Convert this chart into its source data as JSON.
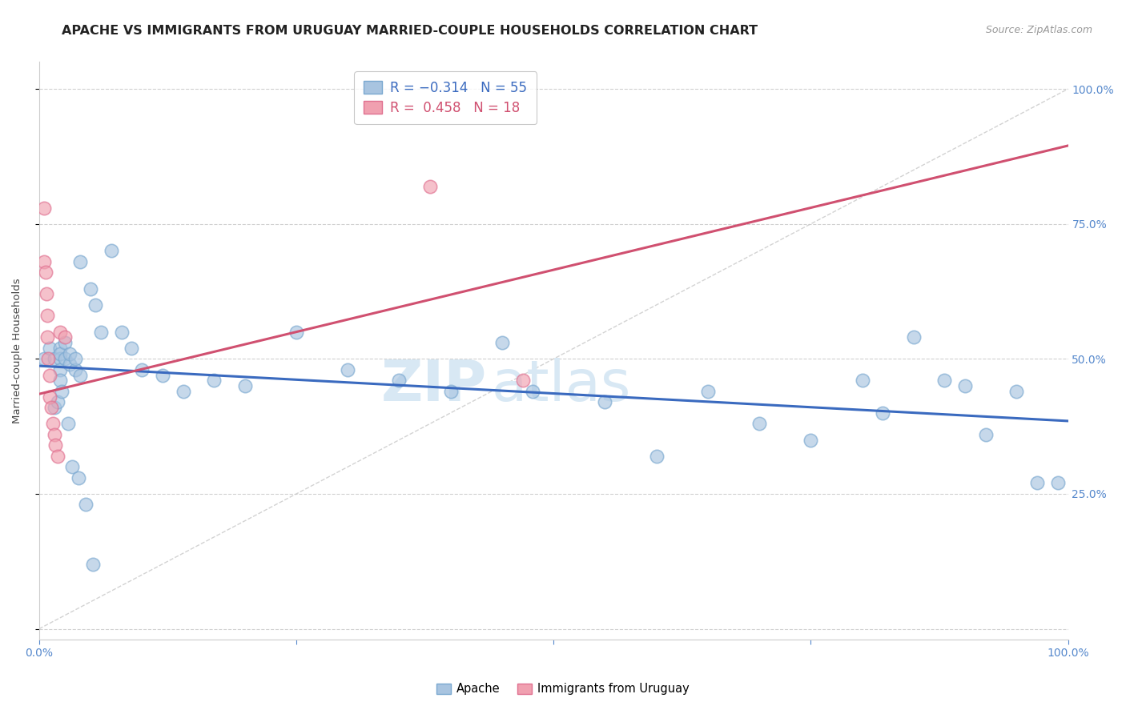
{
  "title": "APACHE VS IMMIGRANTS FROM URUGUAY MARRIED-COUPLE HOUSEHOLDS CORRELATION CHART",
  "source": "Source: ZipAtlas.com",
  "ylabel": "Married-couple Households",
  "xlim": [
    0.0,
    1.0
  ],
  "ylim": [
    -0.02,
    1.05
  ],
  "xticks": [
    0.0,
    0.25,
    0.5,
    0.75,
    1.0
  ],
  "yticks": [
    0.0,
    0.25,
    0.5,
    0.75,
    1.0
  ],
  "xticklabels": [
    "0.0%",
    "",
    "",
    "",
    "100.0%"
  ],
  "yticklabels_right": [
    "",
    "25.0%",
    "50.0%",
    "75.0%",
    "100.0%"
  ],
  "watermark_zip": "ZIP",
  "watermark_atlas": "atlas",
  "apache_x": [
    0.005,
    0.01,
    0.015,
    0.02,
    0.02,
    0.02,
    0.02,
    0.02,
    0.025,
    0.025,
    0.03,
    0.03,
    0.035,
    0.035,
    0.04,
    0.04,
    0.05,
    0.055,
    0.06,
    0.07,
    0.08,
    0.09,
    0.1,
    0.12,
    0.14,
    0.17,
    0.2,
    0.25,
    0.3,
    0.35,
    0.4,
    0.45,
    0.48,
    0.55,
    0.6,
    0.65,
    0.7,
    0.75,
    0.8,
    0.82,
    0.85,
    0.88,
    0.9,
    0.92,
    0.95,
    0.97,
    0.99,
    0.015,
    0.018,
    0.022,
    0.028,
    0.032,
    0.038,
    0.045,
    0.052
  ],
  "apache_y": [
    0.5,
    0.52,
    0.5,
    0.52,
    0.5,
    0.48,
    0.46,
    0.51,
    0.53,
    0.5,
    0.49,
    0.51,
    0.48,
    0.5,
    0.47,
    0.68,
    0.63,
    0.6,
    0.55,
    0.7,
    0.55,
    0.52,
    0.48,
    0.47,
    0.44,
    0.46,
    0.45,
    0.55,
    0.48,
    0.46,
    0.44,
    0.53,
    0.44,
    0.42,
    0.32,
    0.44,
    0.38,
    0.35,
    0.46,
    0.4,
    0.54,
    0.46,
    0.45,
    0.36,
    0.44,
    0.27,
    0.27,
    0.41,
    0.42,
    0.44,
    0.38,
    0.3,
    0.28,
    0.23,
    0.12
  ],
  "uruguay_x": [
    0.005,
    0.005,
    0.006,
    0.007,
    0.008,
    0.008,
    0.009,
    0.01,
    0.01,
    0.012,
    0.013,
    0.015,
    0.016,
    0.018,
    0.02,
    0.025,
    0.38,
    0.47
  ],
  "uruguay_y": [
    0.78,
    0.68,
    0.66,
    0.62,
    0.58,
    0.54,
    0.5,
    0.47,
    0.43,
    0.41,
    0.38,
    0.36,
    0.34,
    0.32,
    0.55,
    0.54,
    0.82,
    0.46
  ],
  "blue_line_x": [
    0.0,
    1.0
  ],
  "blue_line_y": [
    0.487,
    0.385
  ],
  "pink_line_x": [
    0.0,
    1.0
  ],
  "pink_line_y": [
    0.435,
    0.895
  ],
  "diag_line_x": [
    0.0,
    1.0
  ],
  "diag_line_y": [
    0.0,
    1.0
  ],
  "dot_color_blue": "#a8c4e0",
  "dot_color_pink": "#f0a0b0",
  "dot_edge_blue": "#7aa8d0",
  "dot_edge_pink": "#e07090",
  "line_color_blue": "#3a6abf",
  "line_color_pink": "#d05070",
  "diag_line_color": "#c8c8c8",
  "tick_color": "#5588cc",
  "background_color": "#ffffff",
  "title_fontsize": 11.5,
  "source_fontsize": 9,
  "label_fontsize": 9.5,
  "tick_fontsize": 10,
  "legend_fontsize": 12,
  "watermark_fontsize_zip": 52,
  "watermark_fontsize_atlas": 52,
  "watermark_color": "#d8e8f4",
  "legend_r_color": "#3a6abf",
  "legend_n_color": "#3a6abf",
  "legend_r2_color": "#d05070",
  "legend_n2_color": "#d05070"
}
